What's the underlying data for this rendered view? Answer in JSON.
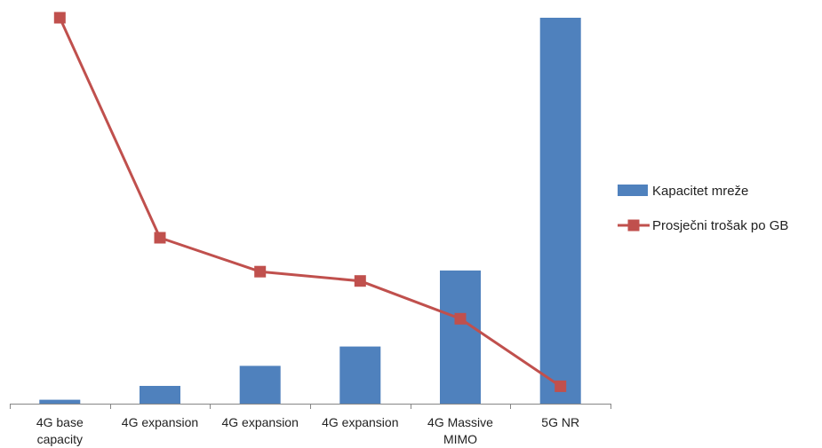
{
  "chart_data": {
    "type": "bar",
    "categories": [
      [
        "4G base",
        "capacity"
      ],
      [
        "4G expansion"
      ],
      [
        "4G expansion"
      ],
      [
        "4G expansion"
      ],
      [
        "4G Massive",
        "MIMO"
      ],
      [
        "5G NR"
      ]
    ],
    "series": [
      {
        "name": "Kapacitet mreže",
        "type": "bar",
        "color": "#4F81BD",
        "values": [
          1,
          4.6,
          9.8,
          14.8,
          34.5,
          100
        ]
      },
      {
        "name": "Prosječni trošak po GB",
        "type": "line",
        "marker": "square",
        "color": "#C0504D",
        "values": [
          100,
          43,
          34.2,
          31.8,
          22,
          4.5
        ]
      }
    ],
    "title": "",
    "xlabel": "",
    "ylabel": "",
    "ylim": [
      0,
      100
    ],
    "y_axis_visible": false,
    "grid": false,
    "legend_position": "right"
  }
}
